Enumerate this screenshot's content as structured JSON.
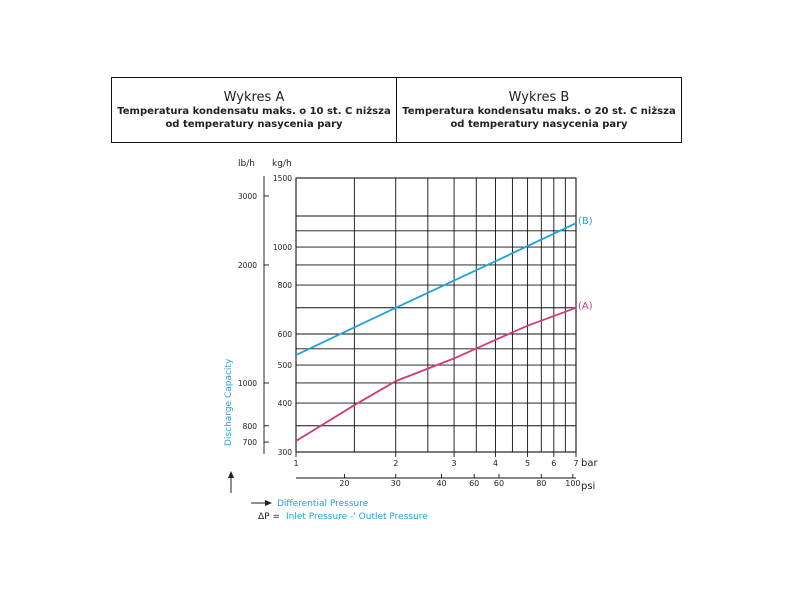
{
  "header": {
    "cells": [
      {
        "title": "Wykres A",
        "subtitle": "Temperatura kondensatu maks. o 10 st. C niższa\nod temperatury nasycenia pary"
      },
      {
        "title": "Wykres B",
        "subtitle": "Temperatura kondensatu maks. o 20 st. C niższa\nod temperatury nasycenia pary"
      }
    ]
  },
  "colors": {
    "curve_a": "#d4397a",
    "curve_b": "#1fa3dc",
    "grid": "#111111",
    "label_blue": "#1fa3dc"
  },
  "chart_data": {
    "type": "line",
    "xlabel": "bar",
    "x_secondary_label": "psi",
    "ylabel": "Discharge Capacity",
    "y_unit_left": "lb/h",
    "y_unit_right": "kg/h",
    "x_scale": "log",
    "y_scale": "log",
    "xlim": [
      1,
      7
    ],
    "ylim": [
      300,
      1500
    ],
    "x_ticks": [
      1,
      2,
      3,
      4,
      5,
      6,
      7
    ],
    "x_grid": [
      1,
      1.5,
      2,
      2.5,
      3,
      3.5,
      4,
      4.5,
      5,
      5.5,
      6,
      6.5,
      7
    ],
    "y_ticks_kg": [
      300,
      400,
      500,
      600,
      800,
      1000,
      1500
    ],
    "y_grid": [
      300,
      350,
      400,
      450,
      500,
      550,
      600,
      700,
      800,
      900,
      1000,
      1100,
      1200,
      1500
    ],
    "psi_ticks": [
      20,
      30,
      40,
      60,
      60,
      80,
      100
    ],
    "psi_positions_bar": [
      1.4,
      2.0,
      2.75,
      3.45,
      4.1,
      5.5,
      6.85
    ],
    "lb_ticks": [
      700,
      800,
      1000,
      2000,
      3000
    ],
    "lb_positions_kg": [
      318,
      350,
      450,
      900,
      1350
    ],
    "series": [
      {
        "name": "(B)",
        "x": [
          1,
          2,
          4,
          7
        ],
        "y": [
          530,
          700,
          920,
          1150
        ]
      },
      {
        "name": "(A)",
        "x": [
          1,
          1.5,
          2,
          3,
          4,
          5,
          7
        ],
        "y": [
          320,
          395,
          455,
          520,
          580,
          630,
          700
        ]
      }
    ],
    "annotations": {
      "arrow_label": "Differential Pressure",
      "delta_p_symbol": "ΔP =",
      "delta_p_formula": "Inlet Pressure -' Outlet Pressure"
    }
  }
}
